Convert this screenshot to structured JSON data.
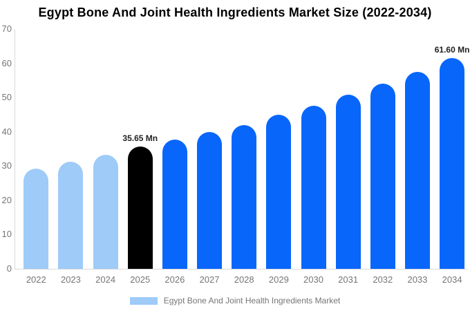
{
  "chart_data": {
    "type": "bar",
    "title": "Egypt Bone And Joint Health Ingredients Market Size (2022-2034)",
    "categories": [
      "2022",
      "2023",
      "2024",
      "2025",
      "2026",
      "2027",
      "2028",
      "2029",
      "2030",
      "2031",
      "2032",
      "2033",
      "2034"
    ],
    "values": [
      29.2,
      31.3,
      33.3,
      35.65,
      37.7,
      39.9,
      42.0,
      44.9,
      47.7,
      50.9,
      54.1,
      57.5,
      61.6
    ],
    "value_unit": "Mn",
    "bar_labels": [
      "",
      "",
      "",
      "35.65 Mn",
      "",
      "",
      "",
      "",
      "",
      "",
      "",
      "",
      "61.60 Mn"
    ],
    "bar_colors": [
      "#9ECBF8",
      "#9ECBF8",
      "#9ECBF8",
      "#000000",
      "#0866FB",
      "#0866FB",
      "#0866FB",
      "#0866FB",
      "#0866FB",
      "#0866FB",
      "#0866FB",
      "#0866FB",
      "#0866FB"
    ],
    "xlabel": "",
    "ylabel": "",
    "ylim": [
      0,
      70
    ],
    "yticks": [
      0,
      10,
      20,
      30,
      40,
      50,
      60,
      70
    ],
    "grid": false,
    "legend": {
      "position": "bottom",
      "label": "Egypt Bone And Joint Health Ingredients Market",
      "swatch_color": "#9ECBF8"
    },
    "colors": {
      "historic": "#9ECBF8",
      "base_year": "#000000",
      "forecast": "#0866FB",
      "axis": "#d9d9d9",
      "tick_text": "#757575",
      "title_text": "#000000",
      "data_label_text": "#222222"
    }
  }
}
